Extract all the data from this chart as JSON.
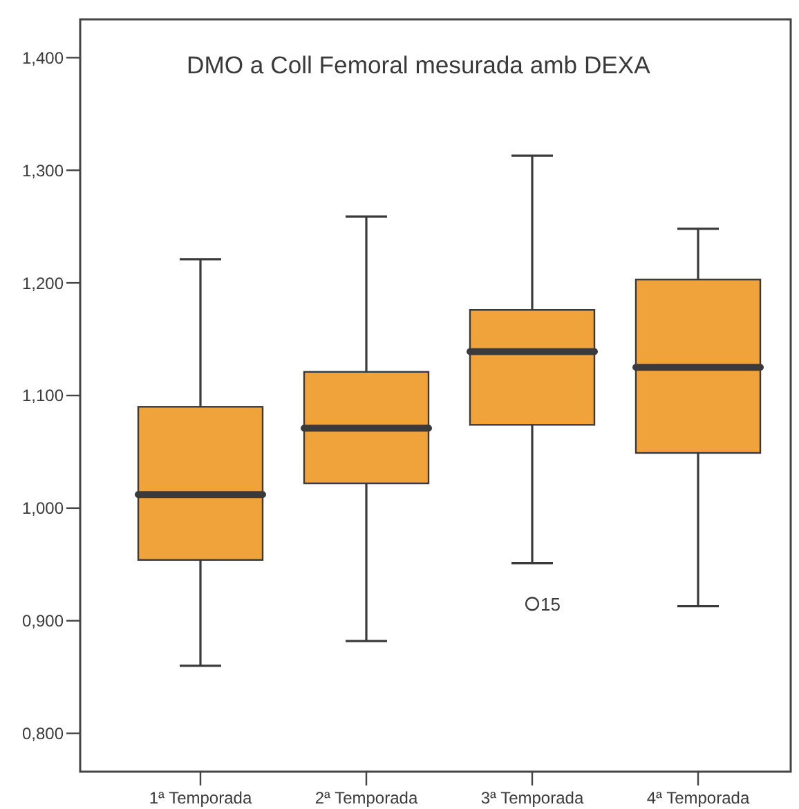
{
  "chart_data": {
    "type": "box",
    "title": "DMO a Coll Femoral mesurada amb DEXA",
    "categories": [
      "1ª Temporada",
      "2ª Temporada",
      "3ª Temporada",
      "4ª Temporada"
    ],
    "boxes": [
      {
        "low": 0.86,
        "q1": 0.954,
        "median": 1.012,
        "q3": 1.09,
        "high": 1.221
      },
      {
        "low": 0.882,
        "q1": 1.022,
        "median": 1.071,
        "q3": 1.121,
        "high": 1.259
      },
      {
        "low": 0.951,
        "q1": 1.074,
        "median": 1.139,
        "q3": 1.176,
        "high": 1.313,
        "outliers": [
          0.915
        ]
      },
      {
        "low": 0.913,
        "q1": 1.049,
        "median": 1.125,
        "q3": 1.203,
        "high": 1.248
      }
    ],
    "color": "#f0a33a",
    "ylim": [
      0.766,
      1.434
    ],
    "yticks": [
      {
        "value": 0.8,
        "label": "0,800"
      },
      {
        "value": 0.9,
        "label": "0,900"
      },
      {
        "value": 1.0,
        "label": "1,000"
      },
      {
        "value": 1.1,
        "label": "1,100"
      },
      {
        "value": 1.2,
        "label": "1,200"
      },
      {
        "value": 1.3,
        "label": "1,300"
      },
      {
        "value": 1.4,
        "label": "1,400"
      }
    ],
    "annotations": [
      "15"
    ]
  }
}
